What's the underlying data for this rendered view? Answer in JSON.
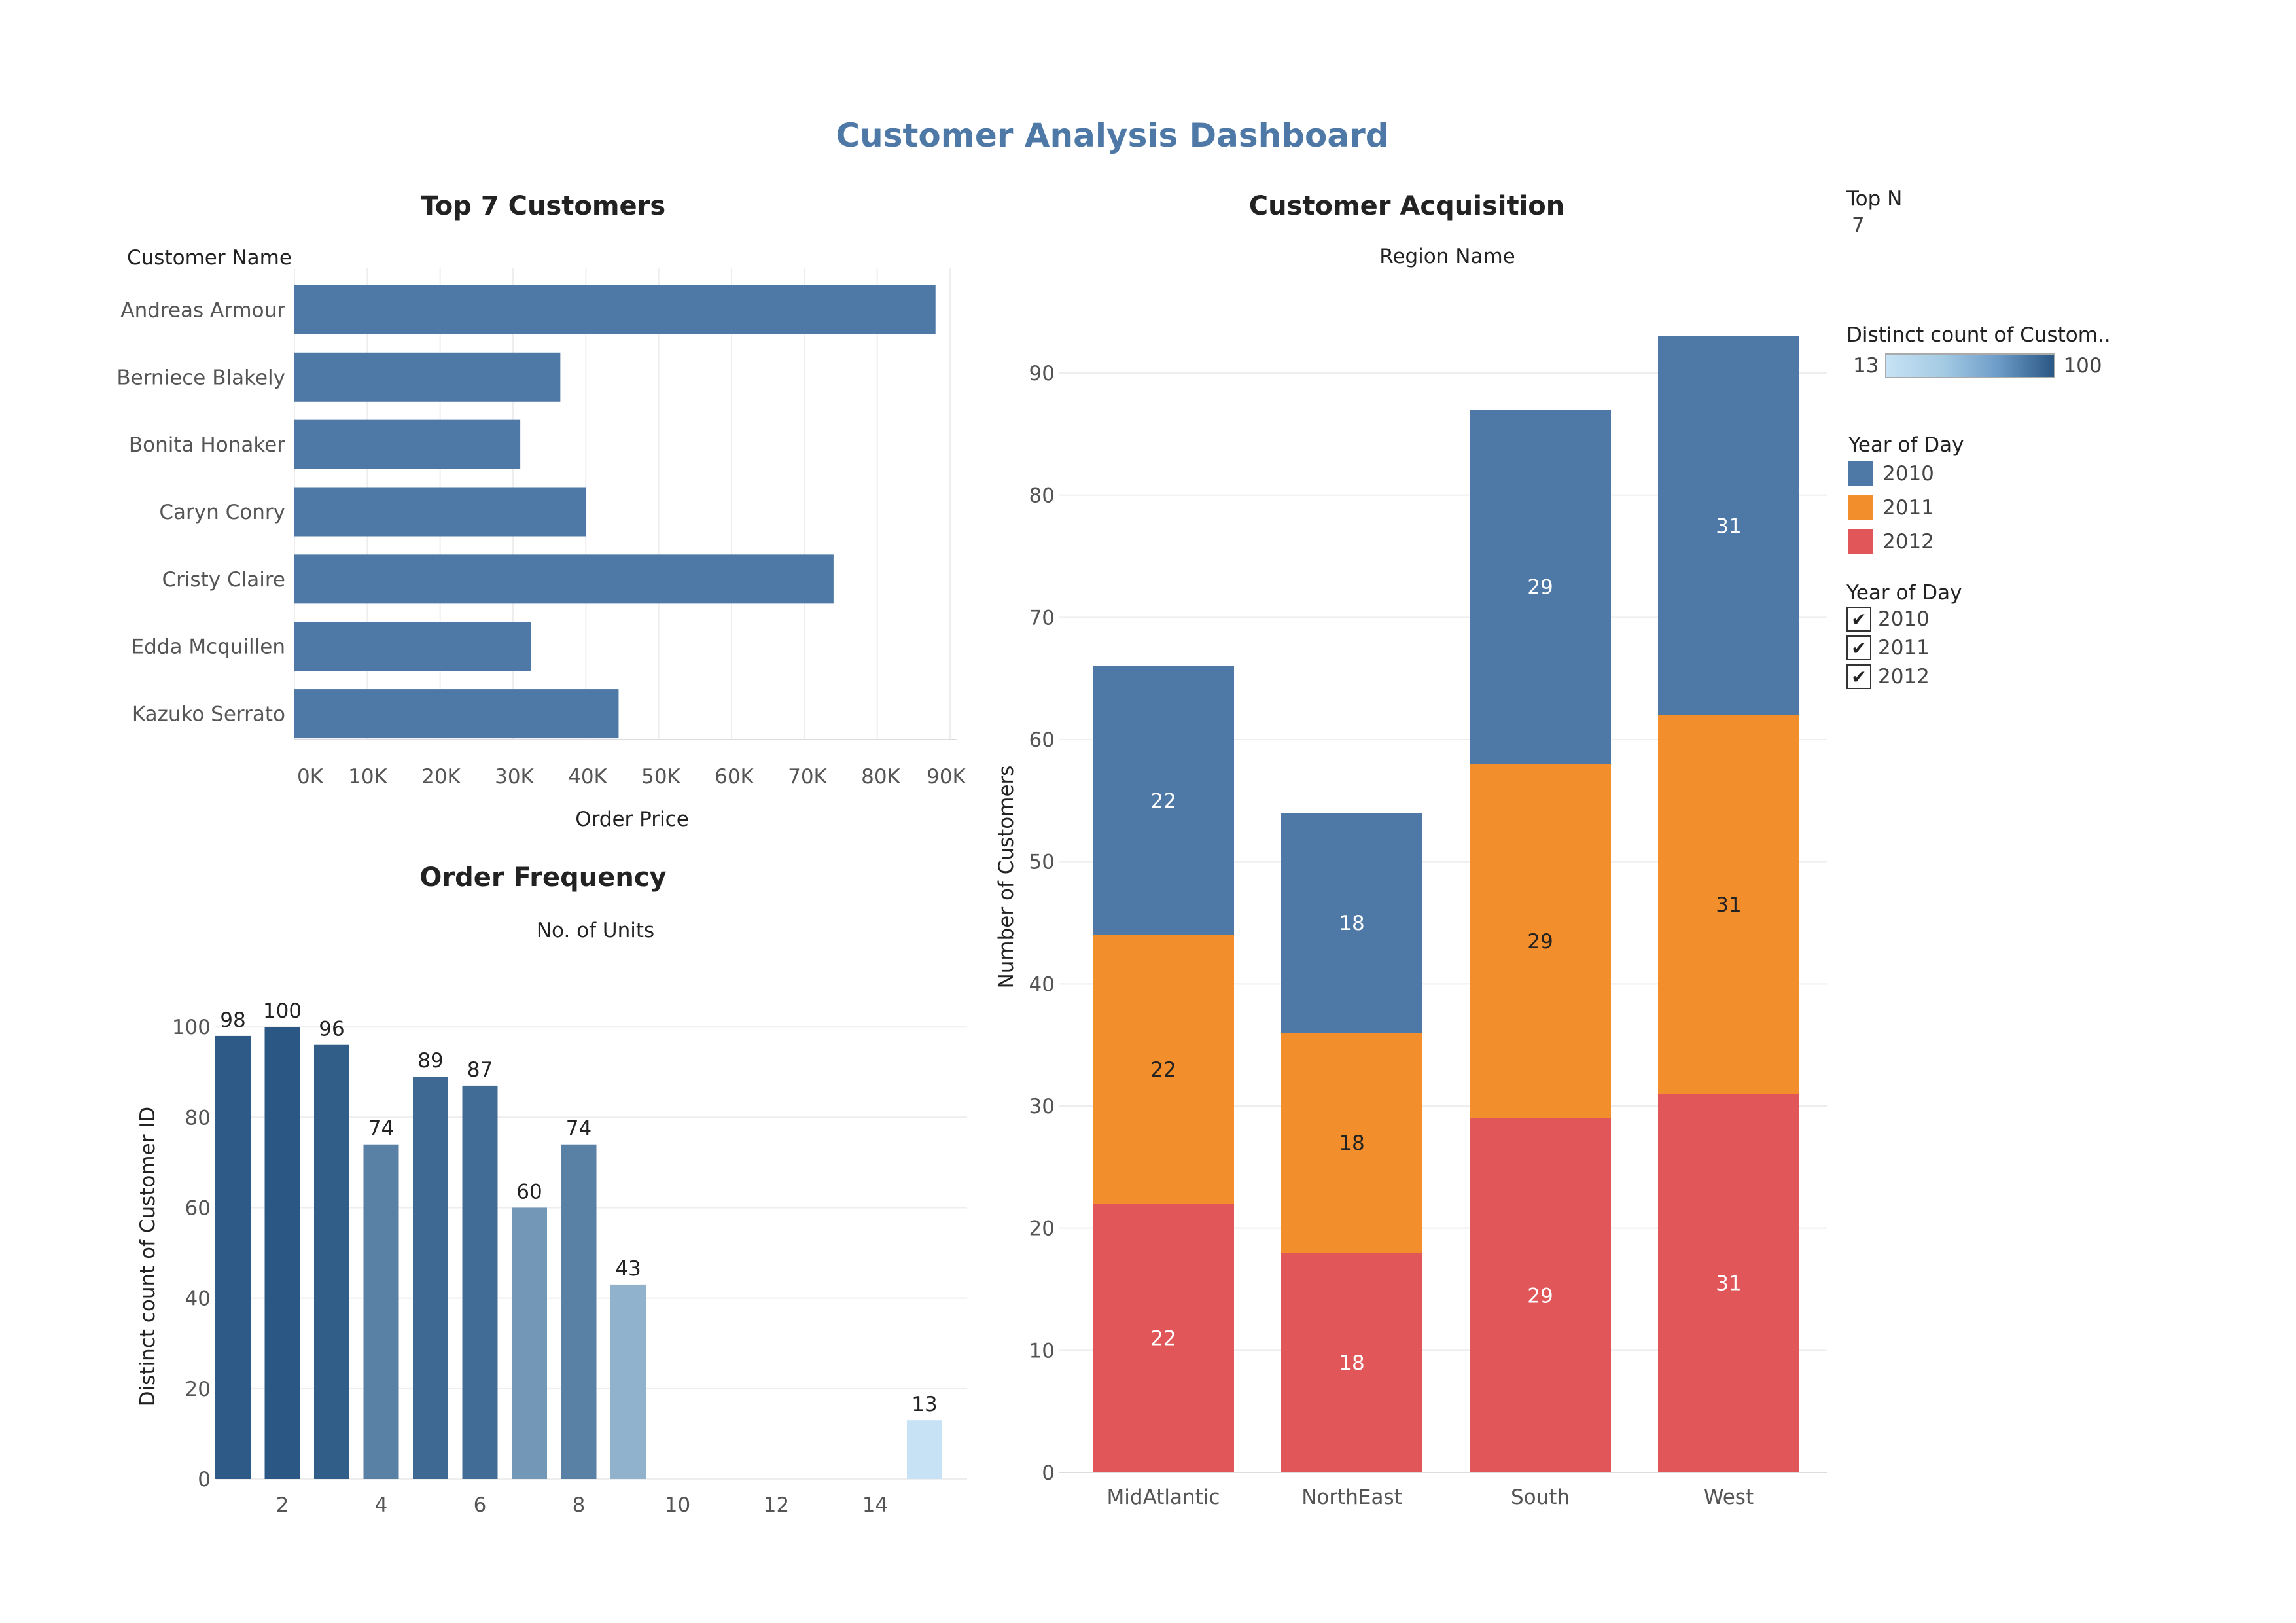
{
  "dashboard": {
    "title": "Customer Analysis Dashboard"
  },
  "top_customers": {
    "title": "Top 7 Customers",
    "row_header": "Customer Name",
    "xlabel": "Order Price",
    "ticks": [
      "0K",
      "10K",
      "20K",
      "30K",
      "40K",
      "50K",
      "60K",
      "70K",
      "80K",
      "90K"
    ]
  },
  "order_frequency": {
    "title": "Order Frequency",
    "xlabel": "No. of Units",
    "ylabel": "Distinct count of Customer ID",
    "xticks": [
      "2",
      "4",
      "6",
      "8",
      "10",
      "12",
      "14"
    ],
    "yticks": [
      "0",
      "20",
      "40",
      "60",
      "80",
      "100"
    ]
  },
  "acquisition": {
    "title": "Customer Acquisition",
    "xlabel": "Region Name",
    "ylabel": "Number of Customers",
    "yticks": [
      "0",
      "10",
      "20",
      "30",
      "40",
      "50",
      "60",
      "70",
      "80",
      "90"
    ]
  },
  "side_panel": {
    "topn_title": "Top N",
    "topn_value": "7",
    "color_legend_title": "Distinct count of Custom..",
    "color_min": "13",
    "color_max": "100",
    "year_legend_title": "Year of Day",
    "year_legend": [
      {
        "label": "2010",
        "color": "#4e79a7"
      },
      {
        "label": "2011",
        "color": "#f28e2b"
      },
      {
        "label": "2012",
        "color": "#e15759"
      }
    ],
    "filter_title": "Year of Day",
    "filters": [
      {
        "label": "2010",
        "check": "✔"
      },
      {
        "label": "2011",
        "check": "✔"
      },
      {
        "label": "2012",
        "check": "✔"
      }
    ]
  },
  "chart_data": [
    {
      "type": "bar",
      "orientation": "horizontal",
      "title": "Top 7 Customers",
      "xlabel": "Order Price",
      "categories": [
        "Andreas Armour",
        "Berniece Blakely",
        "Bonita Honaker",
        "Caryn Conry",
        "Cristy Claire",
        "Edda Mcquillen",
        "Kazuko Serrato"
      ],
      "values": [
        88000,
        36500,
        31000,
        40000,
        74000,
        32500,
        44500
      ],
      "xlim": [
        0,
        90000
      ],
      "grid": true,
      "color": "#4e79a7"
    },
    {
      "type": "bar",
      "title": "Order Frequency",
      "xlabel": "No. of Units",
      "ylabel": "Distinct count of Customer ID",
      "x": [
        1,
        2,
        3,
        4,
        5,
        6,
        7,
        8,
        9,
        15
      ],
      "values": [
        98,
        100,
        96,
        74,
        89,
        87,
        60,
        74,
        43,
        13
      ],
      "labels": [
        "98",
        "100",
        "96",
        "74",
        "89",
        "87",
        "60",
        "74",
        "43",
        "13"
      ],
      "xlim": [
        0.3,
        15.3
      ],
      "ylim": [
        0,
        110
      ],
      "color_scale": {
        "min": 13,
        "max": 100,
        "colors": [
          "#c6e2f4",
          "#2a5784"
        ]
      },
      "grid": true
    },
    {
      "type": "bar",
      "stacked": true,
      "title": "Customer Acquisition",
      "xlabel": "Region Name",
      "ylabel": "Number of Customers",
      "categories": [
        "MidAtlantic",
        "NorthEast",
        "South",
        "West"
      ],
      "series": [
        {
          "name": "2012",
          "values": [
            22,
            18,
            29,
            31
          ],
          "labels": [
            "22",
            "18",
            "29",
            "31"
          ],
          "color": "#e15759"
        },
        {
          "name": "2011",
          "values": [
            22,
            18,
            29,
            31
          ],
          "labels": [
            "22",
            "18",
            "29",
            "31"
          ],
          "color": "#f28e2b"
        },
        {
          "name": "2010",
          "values": [
            22,
            18,
            29,
            31
          ],
          "labels": [
            "22",
            "18",
            "29",
            "31"
          ],
          "color": "#4e79a7"
        }
      ],
      "extra_top_segment_adjust": [
        0,
        0,
        0,
        0
      ],
      "ylim": [
        0,
        97
      ],
      "legend": "right",
      "grid": true
    }
  ]
}
